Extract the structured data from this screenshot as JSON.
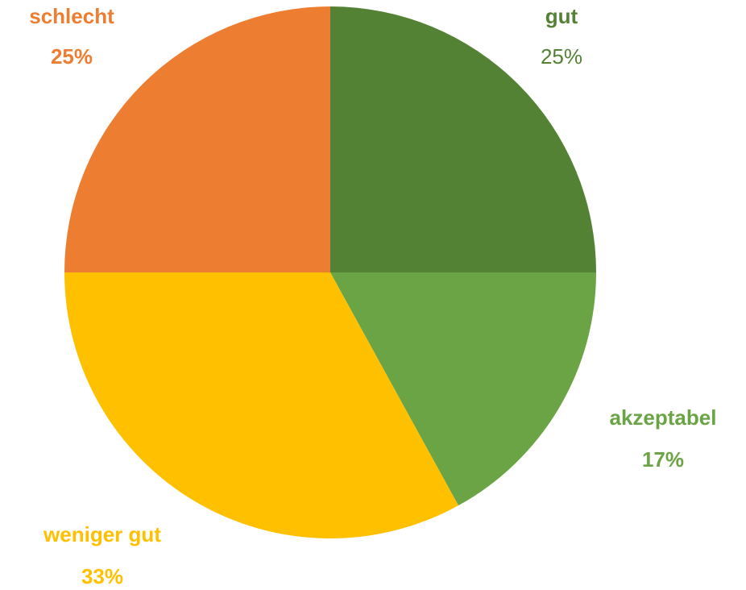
{
  "chart_data": {
    "type": "pie",
    "categories": [
      "gut",
      "akzeptabel",
      "weniger gut",
      "schlecht"
    ],
    "values": [
      25,
      17,
      33,
      25
    ],
    "value_labels": [
      "25%",
      "17%",
      "33%",
      "25%"
    ],
    "colors": [
      "#548235",
      "#6aa444",
      "#ffc000",
      "#ed7d31"
    ]
  }
}
